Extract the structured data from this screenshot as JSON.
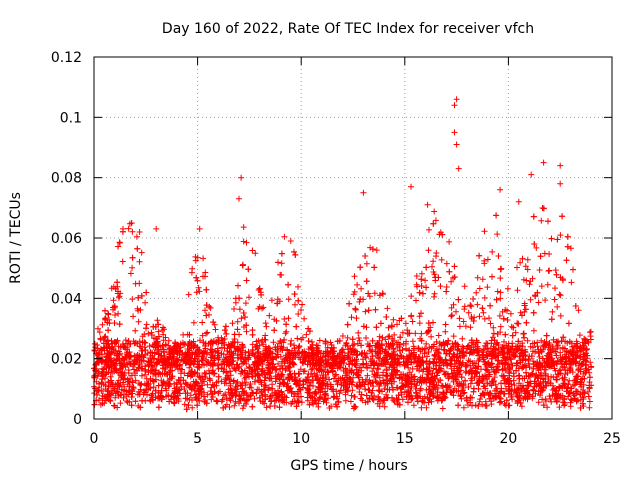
{
  "chart_data": {
    "type": "scatter",
    "title": "Day 160 of 2022, Rate Of TEC Index for receiver vfch",
    "xlabel": "GPS time / hours",
    "ylabel": "ROTI / TECUs",
    "xlim": [
      0,
      25
    ],
    "ylim": [
      0,
      0.12
    ],
    "x_ticks": [
      0,
      5,
      10,
      15,
      20,
      25
    ],
    "x_tick_labels": [
      "0",
      "5",
      "10",
      "15",
      "20",
      "25"
    ],
    "y_ticks": [
      0,
      0.02,
      0.04,
      0.06,
      0.08,
      0.1,
      0.12
    ],
    "y_tick_labels": [
      "0",
      "0.02",
      "0.04",
      "0.06",
      "0.08",
      "0.1",
      "0.12"
    ],
    "grid": true,
    "marker": "+",
    "color": "#ff0000",
    "x_data_range": [
      0,
      24
    ],
    "baseline_band": [
      0.005,
      0.025
    ],
    "series": [
      {
        "name": "ROTI",
        "notable_points": [
          {
            "x": 1.4,
            "y": 0.063
          },
          {
            "x": 2.2,
            "y": 0.062
          },
          {
            "x": 3.0,
            "y": 0.063
          },
          {
            "x": 5.1,
            "y": 0.063
          },
          {
            "x": 7.0,
            "y": 0.073
          },
          {
            "x": 7.1,
            "y": 0.08
          },
          {
            "x": 9.5,
            "y": 0.059
          },
          {
            "x": 13.0,
            "y": 0.075
          },
          {
            "x": 15.3,
            "y": 0.077
          },
          {
            "x": 16.1,
            "y": 0.071
          },
          {
            "x": 17.4,
            "y": 0.104
          },
          {
            "x": 17.5,
            "y": 0.106
          },
          {
            "x": 17.4,
            "y": 0.095
          },
          {
            "x": 17.5,
            "y": 0.091
          },
          {
            "x": 17.6,
            "y": 0.083
          },
          {
            "x": 19.6,
            "y": 0.076
          },
          {
            "x": 20.5,
            "y": 0.072
          },
          {
            "x": 21.1,
            "y": 0.081
          },
          {
            "x": 21.7,
            "y": 0.085
          },
          {
            "x": 22.5,
            "y": 0.084
          },
          {
            "x": 22.5,
            "y": 0.078
          }
        ]
      }
    ]
  }
}
